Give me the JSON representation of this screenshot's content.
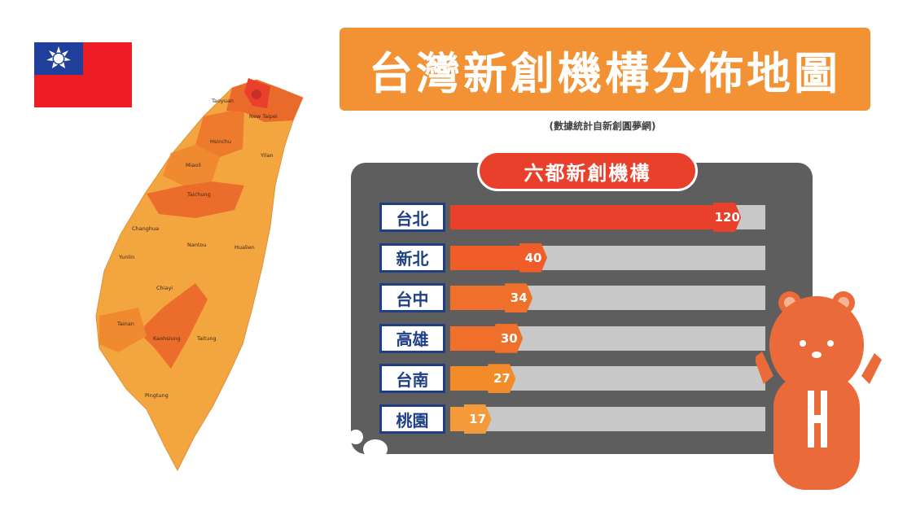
{
  "title": "台灣新創機構分佈地圖",
  "subtitle": "(數據統計自新創圓夢網)",
  "chart_data": {
    "type": "bar",
    "title": "六都新創機構",
    "orientation": "horizontal",
    "categories": [
      "台北",
      "新北",
      "台中",
      "高雄",
      "台南",
      "桃園"
    ],
    "values": [
      120,
      40,
      34,
      30,
      27,
      17
    ],
    "xlim": [
      0,
      130
    ],
    "grid": false,
    "legend": "none"
  },
  "colors": {
    "title_banner": "#f39235",
    "chart_title": "#e8402a",
    "panel": "#5e5e5e",
    "category_border": "#1f3f85",
    "track": "#c8c8c8",
    "bars": [
      "#e8402a",
      "#f05d28",
      "#f06f2a",
      "#f06f2a",
      "#f38c28",
      "#f59a3a"
    ]
  },
  "map": {
    "labels": [
      "Taoyuan",
      "New Taipei",
      "Hsinchu",
      "Yilan",
      "Miaoli",
      "Taichung",
      "Changhua",
      "Nantou",
      "Hualien",
      "Yunlin",
      "Chiayi",
      "Tainan",
      "Kaohsiung",
      "Taitung",
      "Pingtung"
    ]
  },
  "icons": {
    "flag": "taiwan-flag-icon",
    "mascot": "bear-mascot-icon"
  }
}
